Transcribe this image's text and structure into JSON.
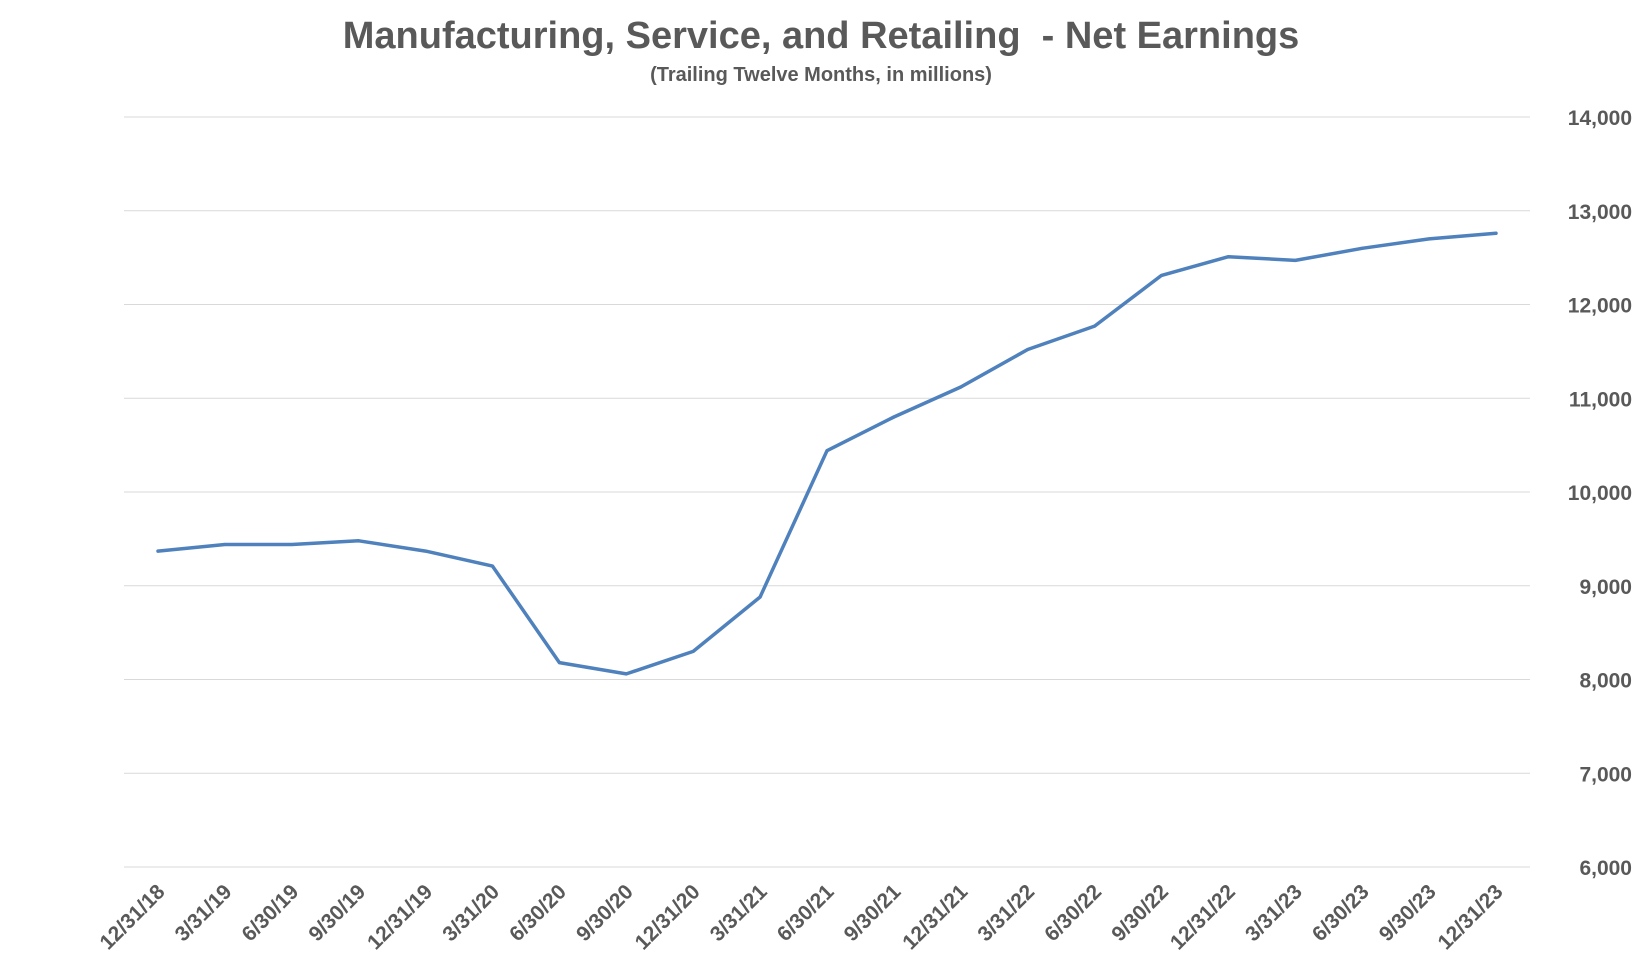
{
  "chart_data": {
    "type": "line",
    "title": "Manufacturing, Service, and Retailing  - Net Earnings",
    "subtitle": "(Trailing Twelve Months, in millions)",
    "xlabel": "",
    "ylabel": "",
    "ylim": [
      6000,
      14000
    ],
    "y_ticks": [
      6000,
      7000,
      8000,
      9000,
      10000,
      11000,
      12000,
      13000,
      14000
    ],
    "y_tick_labels": [
      "6,000",
      "7,000",
      "8,000",
      "9,000",
      "10,000",
      "11,000",
      "12,000",
      "13,000",
      "14,000"
    ],
    "y_axis_position": "right",
    "grid": true,
    "legend": "none",
    "categories": [
      "12/31/18",
      "3/31/19",
      "6/30/19",
      "9/30/19",
      "12/31/19",
      "3/31/20",
      "6/30/20",
      "9/30/20",
      "12/31/20",
      "3/31/21",
      "6/30/21",
      "9/30/21",
      "12/31/21",
      "3/31/22",
      "6/30/22",
      "9/30/22",
      "12/31/22",
      "3/31/23",
      "6/30/23",
      "9/30/23",
      "12/31/23"
    ],
    "series": [
      {
        "values": [
          9370,
          9440,
          9440,
          9480,
          9370,
          9210,
          8180,
          8060,
          8300,
          8880,
          10440,
          10800,
          11120,
          11520,
          11770,
          12310,
          12510,
          12470,
          12600,
          12700,
          12760
        ],
        "color": "#4f81bd"
      }
    ]
  }
}
